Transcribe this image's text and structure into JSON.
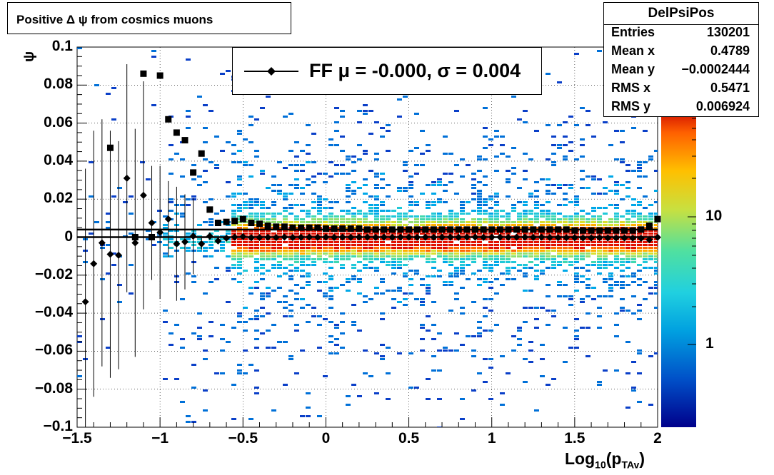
{
  "title": "Positive Δ ψ from cosmics muons",
  "stats": {
    "name": "DelPsiPos",
    "rows": [
      {
        "key": "Entries",
        "value": "130201"
      },
      {
        "key": "Mean x",
        "value": "0.4789"
      },
      {
        "key": "Mean y",
        "value": "−0.0002444"
      },
      {
        "key": "RMS x",
        "value": "0.5471"
      },
      {
        "key": "RMS y",
        "value": "0.006924"
      }
    ]
  },
  "legend": {
    "label": "FF μ = -0.000, σ =   0.004"
  },
  "axes": {
    "x_title": "Log",
    "x_title_sub": "10",
    "x_title_mid": "(p",
    "x_title_sub2": "TAv",
    "x_title_end": ")",
    "y_title": "ψ",
    "x_ticks": [
      "−1.5",
      "−1",
      "−0.5",
      "0",
      "0.5",
      "1",
      "1.5",
      "2"
    ],
    "y_ticks": [
      "0.1",
      "0.08",
      "0.06",
      "0.04",
      "0.02",
      "0",
      "−0.02",
      "−0.04",
      "−0.06",
      "−0.08",
      "−0.1"
    ],
    "z_ticks": [
      "10",
      "1"
    ]
  },
  "chart_data": {
    "type": "heatmap",
    "title": "Positive Δ ψ from cosmics muons",
    "xlabel": "Log10(pTAv)",
    "ylabel": "ψ",
    "xlim": [
      -1.5,
      2
    ],
    "ylim": [
      -0.1,
      0.1
    ],
    "z_scale": "log",
    "colormap": "rainbow (dark blue to dark red)",
    "grid": true,
    "legend_position": "top-center",
    "heatmap": {
      "description_points": "density concentrated in a band around psi=0, widening toward low x",
      "core_halfwidth_y": 0.006,
      "spread_halfwidth_y": 0.03
    },
    "series": [
      {
        "name": "FF",
        "marker": "diamond",
        "x": [
          -1.45,
          -1.4,
          -1.35,
          -1.3,
          -1.25,
          -1.2,
          -1.15,
          -1.1,
          -1.05,
          -1.0,
          -0.95,
          -0.9,
          -0.85,
          -0.8,
          -0.75,
          -0.7,
          -0.65,
          -0.6,
          -0.55,
          -0.5,
          -0.45,
          -0.4,
          -0.35,
          -0.3,
          -0.25,
          -0.2,
          -0.15,
          -0.1,
          -0.05,
          0.0,
          0.05,
          0.1,
          0.15,
          0.2,
          0.25,
          0.3,
          0.35,
          0.4,
          0.45,
          0.5,
          0.55,
          0.6,
          0.65,
          0.7,
          0.75,
          0.8,
          0.85,
          0.9,
          0.95,
          1.0,
          1.05,
          1.1,
          1.15,
          1.2,
          1.25,
          1.3,
          1.35,
          1.4,
          1.45,
          1.5,
          1.55,
          1.6,
          1.65,
          1.7,
          1.75,
          1.8,
          1.85,
          1.9,
          1.95,
          2.0
        ],
        "y": [
          -0.034,
          -0.014,
          -0.003,
          -0.009,
          -0.0095,
          0.031,
          -0.003,
          0.022,
          0.0075,
          0.0025,
          0.0095,
          -0.0035,
          -0.0025,
          0.0005,
          -0.0035,
          0.0005,
          -0.002,
          -0.0005,
          0.0,
          0.0003,
          -0.0003,
          -0.0002,
          -0.0001,
          -0.0002,
          0.0,
          -0.0002,
          -0.0001,
          0.0,
          -0.0001,
          0.0,
          -0.0001,
          0.0,
          -0.0001,
          0.0,
          0.0,
          -0.0001,
          0.0,
          -0.0001,
          0.0,
          0.0,
          -0.0001,
          0.0,
          -0.0001,
          0.0,
          0.0,
          -0.0001,
          0.0,
          0.0,
          -0.0001,
          0.0,
          0.0,
          -0.0001,
          0.0,
          0.0,
          -0.0001,
          0.0,
          -0.0002,
          -0.0003,
          -0.0003,
          -0.0003,
          -0.0004,
          -0.0004,
          -0.0003,
          -0.0004,
          -0.0004,
          -0.0004,
          -0.0005,
          -0.0006,
          -0.0014,
          -0.0001
        ],
        "yerr": [
          0.07,
          0.07,
          0.065,
          0.065,
          0.06,
          0.06,
          0.06,
          0.06,
          0.03,
          0.035,
          0.02,
          0.03,
          0.025,
          0.02,
          0.003,
          0.002,
          0.001,
          0.001,
          0.0005,
          0.0005,
          0.0003,
          0.0003,
          0.0003,
          0.0003,
          0.0002,
          0.0002,
          0.0002,
          0.0002,
          0.0002,
          0.0002,
          0.0002,
          0.0002,
          0.0002,
          0.0002,
          0.0002,
          0.0002,
          0.0002,
          0.0002,
          0.0002,
          0.0002,
          0.0002,
          0.0002,
          0.0002,
          0.0002,
          0.0002,
          0.0002,
          0.0002,
          0.0002,
          0.0002,
          0.0002,
          0.0002,
          0.0002,
          0.0002,
          0.0002,
          0.0002,
          0.0002,
          0.0002,
          0.0002,
          0.0002,
          0.0002,
          0.0002,
          0.0002,
          0.0002,
          0.0002,
          0.0002,
          0.0002,
          0.0002,
          0.0002,
          0.0002,
          0.0002
        ]
      },
      {
        "name": "",
        "marker": "square",
        "x": [
          -1.3,
          -1.15,
          -1.1,
          -1.05,
          -1.0,
          -0.95,
          -0.9,
          -0.85,
          -0.8,
          -0.75,
          -0.7,
          -0.65,
          -0.6,
          -0.55,
          -0.5,
          -0.45,
          -0.4,
          -0.35,
          -0.3,
          -0.25,
          -0.2,
          -0.15,
          -0.1,
          -0.05,
          0.0,
          0.05,
          0.1,
          0.15,
          0.2,
          0.25,
          0.3,
          0.35,
          0.4,
          0.45,
          0.5,
          0.55,
          0.6,
          0.65,
          0.7,
          0.75,
          0.8,
          0.85,
          0.9,
          0.95,
          1.0,
          1.05,
          1.1,
          1.15,
          1.2,
          1.25,
          1.3,
          1.35,
          1.4,
          1.45,
          1.5,
          1.55,
          1.6,
          1.65,
          1.7,
          1.75,
          1.8,
          1.85,
          1.9,
          1.95,
          2.0
        ],
        "y": [
          0.047,
          0.0,
          0.086,
          0.0,
          0.085,
          0.062,
          0.055,
          0.051,
          0.034,
          0.044,
          0.0145,
          0.0075,
          0.008,
          0.0085,
          0.0095,
          0.0075,
          0.007,
          0.006,
          0.0055,
          0.0055,
          0.005,
          0.005,
          0.005,
          0.005,
          0.0045,
          0.0045,
          0.0045,
          0.0045,
          0.0045,
          0.004,
          0.004,
          0.004,
          0.004,
          0.004,
          0.004,
          0.004,
          0.004,
          0.004,
          0.004,
          0.004,
          0.004,
          0.004,
          0.004,
          0.004,
          0.004,
          0.004,
          0.004,
          0.004,
          0.004,
          0.004,
          0.004,
          0.004,
          0.004,
          0.004,
          0.0035,
          0.0035,
          0.0035,
          0.0035,
          0.0035,
          0.0035,
          0.0035,
          0.0035,
          0.004,
          0.006,
          0.0095
        ]
      }
    ],
    "fit_lines": [
      {
        "label": "mean",
        "y": 0.0
      },
      {
        "label": "sigma",
        "y": 0.004
      }
    ]
  }
}
